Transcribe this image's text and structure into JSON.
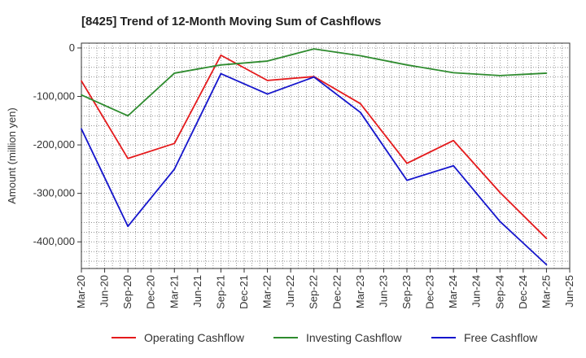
{
  "chart_data": {
    "type": "line",
    "title": "[8425]  Trend of 12-Month Moving Sum of Cashflows",
    "xlabel": "",
    "ylabel": "Amount (million yen)",
    "ylim": [
      -455000,
      10000
    ],
    "yticks": [
      0,
      -100000,
      -200000,
      -300000,
      -400000
    ],
    "ytick_labels": [
      "0",
      "-100,000",
      "-200,000",
      "-300,000",
      "-400,000"
    ],
    "x_tick_labels": [
      "Mar-20",
      "Jun-20",
      "Sep-20",
      "Dec-20",
      "Mar-21",
      "Jun-21",
      "Sep-21",
      "Dec-21",
      "Mar-22",
      "Jun-22",
      "Sep-22",
      "Dec-22",
      "Mar-23",
      "Jun-23",
      "Sep-23",
      "Dec-23",
      "Mar-24",
      "Jun-24",
      "Sep-24",
      "Dec-24",
      "Mar-25",
      "Jun-25"
    ],
    "grid": true,
    "legend_position": "bottom",
    "series": [
      {
        "name": "Operating Cashflow",
        "color": "#e41a1c",
        "x": [
          "Mar-20",
          "Sep-20",
          "Mar-21",
          "Sep-21",
          "Mar-22",
          "Sep-22",
          "Mar-23",
          "Sep-23",
          "Mar-24",
          "Sep-24",
          "Mar-25"
        ],
        "values": [
          -68000,
          -228000,
          -197000,
          -15000,
          -67000,
          -59000,
          -115000,
          -238000,
          -191000,
          -298000,
          -393000
        ]
      },
      {
        "name": "Investing Cashflow",
        "color": "#2e8b2e",
        "x": [
          "Mar-20",
          "Sep-20",
          "Mar-21",
          "Sep-21",
          "Mar-22",
          "Sep-22",
          "Mar-23",
          "Sep-23",
          "Mar-24",
          "Sep-24",
          "Mar-25"
        ],
        "values": [
          -97000,
          -140000,
          -52000,
          -35000,
          -27000,
          -2000,
          -16000,
          -35000,
          -51000,
          -57000,
          -52000
        ]
      },
      {
        "name": "Free Cashflow",
        "color": "#1515cc",
        "x": [
          "Mar-20",
          "Sep-20",
          "Mar-21",
          "Sep-21",
          "Mar-22",
          "Sep-22",
          "Mar-23",
          "Sep-23",
          "Mar-24",
          "Sep-24",
          "Mar-25"
        ],
        "values": [
          -167000,
          -368000,
          -250000,
          -53000,
          -95000,
          -60000,
          -133000,
          -273000,
          -243000,
          -358000,
          -447000
        ]
      }
    ]
  }
}
